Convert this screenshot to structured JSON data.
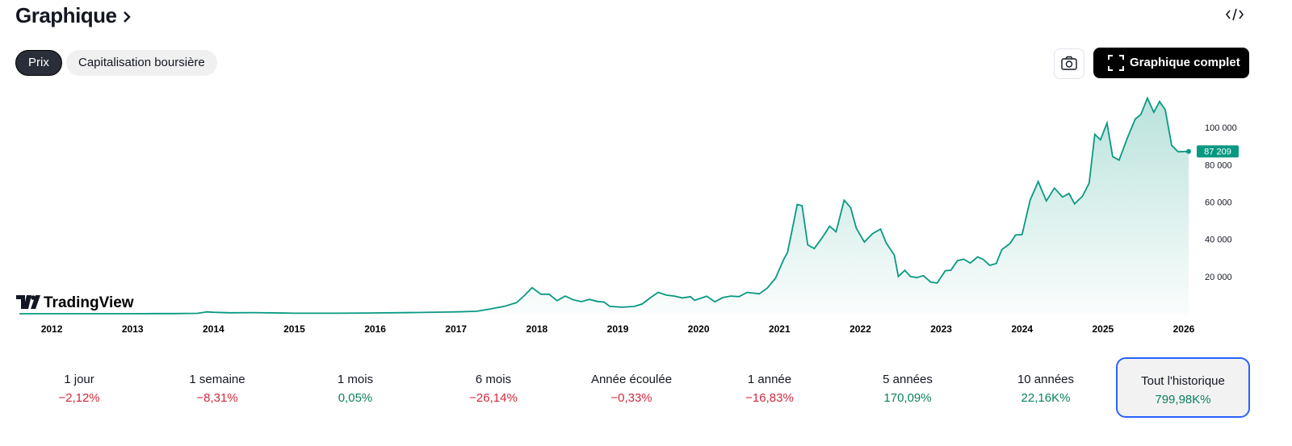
{
  "header": {
    "title": "Graphique"
  },
  "tabs": [
    {
      "label": "Prix",
      "selected": true
    },
    {
      "label": "Capitalisation boursière",
      "selected": false
    }
  ],
  "buttons": {
    "full_chart": "Graphique complet"
  },
  "brand": "TradingView",
  "chart_data": {
    "type": "line",
    "color": "#089981",
    "x": [
      2011.6,
      2012.0,
      2012.5,
      2013.0,
      2013.3,
      2013.5,
      2013.8,
      2013.92,
      2014.0,
      2014.2,
      2014.5,
      2014.9,
      2015.0,
      2015.5,
      2015.9,
      2016.0,
      2016.5,
      2016.9,
      2017.0,
      2017.25,
      2017.4,
      2017.6,
      2017.75,
      2017.85,
      2017.94,
      2018.05,
      2018.15,
      2018.25,
      2018.35,
      2018.45,
      2018.55,
      2018.65,
      2018.75,
      2018.83,
      2018.9,
      2019.05,
      2019.2,
      2019.3,
      2019.4,
      2019.5,
      2019.6,
      2019.7,
      2019.8,
      2019.9,
      2019.95,
      2020.1,
      2020.2,
      2020.3,
      2020.4,
      2020.5,
      2020.6,
      2020.75,
      2020.85,
      2020.95,
      2021.05,
      2021.1,
      2021.18,
      2021.22,
      2021.28,
      2021.35,
      2021.43,
      2021.53,
      2021.62,
      2021.7,
      2021.8,
      2021.88,
      2021.95,
      2022.05,
      2022.15,
      2022.25,
      2022.32,
      2022.42,
      2022.47,
      2022.55,
      2022.62,
      2022.7,
      2022.78,
      2022.87,
      2022.95,
      2023.05,
      2023.12,
      2023.2,
      2023.28,
      2023.36,
      2023.45,
      2023.52,
      2023.6,
      2023.68,
      2023.75,
      2023.85,
      2023.92,
      2024.0,
      2024.1,
      2024.2,
      2024.3,
      2024.4,
      2024.5,
      2024.58,
      2024.65,
      2024.75,
      2024.83,
      2024.9,
      2024.97,
      2025.05,
      2025.12,
      2025.2,
      2025.3,
      2025.4,
      2025.47,
      2025.55,
      2025.63,
      2025.7,
      2025.77,
      2025.85,
      2025.93,
      2026.06
    ],
    "values": [
      5,
      5,
      7,
      13,
      100,
      90,
      200,
      1000,
      800,
      500,
      600,
      350,
      250,
      260,
      400,
      430,
      650,
      900,
      1000,
      1300,
      2400,
      4000,
      6000,
      10000,
      14000,
      10500,
      10500,
      7000,
      9500,
      7500,
      6500,
      7700,
      6600,
      6300,
      4000,
      3500,
      3900,
      5200,
      8500,
      11500,
      10000,
      9500,
      8500,
      9200,
      7200,
      9400,
      6400,
      8700,
      9500,
      9200,
      11500,
      10700,
      13800,
      19000,
      29000,
      33000,
      50000,
      58700,
      58000,
      37000,
      35000,
      41000,
      47000,
      44000,
      61000,
      57000,
      46000,
      38500,
      43000,
      45500,
      38000,
      31500,
      20000,
      23300,
      20000,
      19400,
      20500,
      17000,
      16500,
      23100,
      23400,
      28500,
      29300,
      27200,
      30500,
      29200,
      26000,
      27000,
      34500,
      37700,
      42300,
      42500,
      61000,
      71000,
      60600,
      67500,
      62700,
      64600,
      59000,
      63300,
      70200,
      96400,
      93400,
      102400,
      84400,
      82500,
      94200,
      104600,
      107100,
      115800,
      108200,
      114000,
      109600,
      90400,
      87000,
      87209
    ],
    "xlim": [
      2011.58,
      2026.06
    ],
    "ylim": [
      0,
      120000
    ],
    "xticks": [
      2012,
      2013,
      2014,
      2015,
      2016,
      2017,
      2018,
      2019,
      2020,
      2021,
      2022,
      2023,
      2024,
      2025,
      2026
    ],
    "yticks": [
      {
        "value": 20000,
        "label": "20 000"
      },
      {
        "value": 40000,
        "label": "40 000"
      },
      {
        "value": 60000,
        "label": "60 000"
      },
      {
        "value": 80000,
        "label": "80 000"
      },
      {
        "value": 100000,
        "label": "100 000"
      }
    ],
    "current_price": {
      "value": 87209,
      "label": "87 209"
    },
    "grid": false
  },
  "periods": [
    {
      "label": "1 jour",
      "change": "−2,12%",
      "color": "#d1293d"
    },
    {
      "label": "1 semaine",
      "change": "−8,31%",
      "color": "#d1293d"
    },
    {
      "label": "1 mois",
      "change": "0,05%",
      "color": "#0b8061"
    },
    {
      "label": "6 mois",
      "change": "−26,14%",
      "color": "#d1293d"
    },
    {
      "label": "Année écoulée",
      "change": "−0,33%",
      "color": "#d1293d"
    },
    {
      "label": "1 année",
      "change": "−16,83%",
      "color": "#d1293d"
    },
    {
      "label": "5 années",
      "change": "170,09%",
      "color": "#0b8061"
    },
    {
      "label": "10 années",
      "change": "22,16K%",
      "color": "#0b8061"
    },
    {
      "label": "Tout l'historique",
      "change": "799,98K%",
      "color": "#0b8061",
      "selected": true
    }
  ]
}
